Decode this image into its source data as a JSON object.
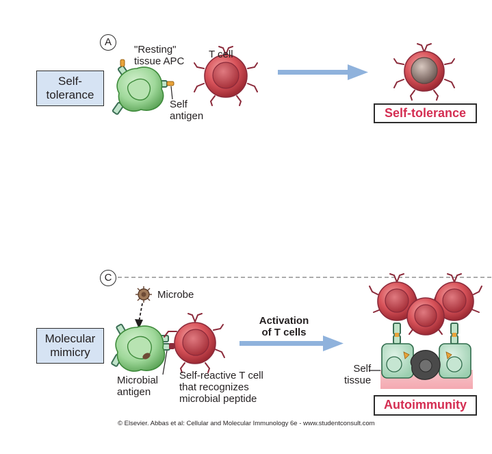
{
  "panel_a": {
    "letter": "A",
    "category_label": "Self-\ntolerance",
    "apc_label": "\"Resting\"\ntissue APC",
    "tcell_label": "T cell",
    "antigen_label": "Self\nantigen",
    "outcome_label": "Self-tolerance"
  },
  "panel_c": {
    "letter": "C",
    "category_label": "Molecular\nmimicry",
    "microbe_label": "Microbe",
    "microbial_antigen_label": "Microbial\nantigen",
    "tcell_label": "Self-reactive T cell\nthat recognizes\nmicrobial peptide",
    "arrow_label": "Activation\nof T cells",
    "self_tissue_label": "Self\ntissue",
    "outcome_label": "Autoimmunity"
  },
  "credit": "© Elsevier. Abbas et al: Cellular and Molecular Immunology 6e - www.studentconsult.com",
  "colors": {
    "outcome_text": "#d42e52",
    "box_fill": "#d6e3f3",
    "arrow": "#8fb2dc",
    "tcell": "#c9454e",
    "apc": "#8fcf8a"
  }
}
